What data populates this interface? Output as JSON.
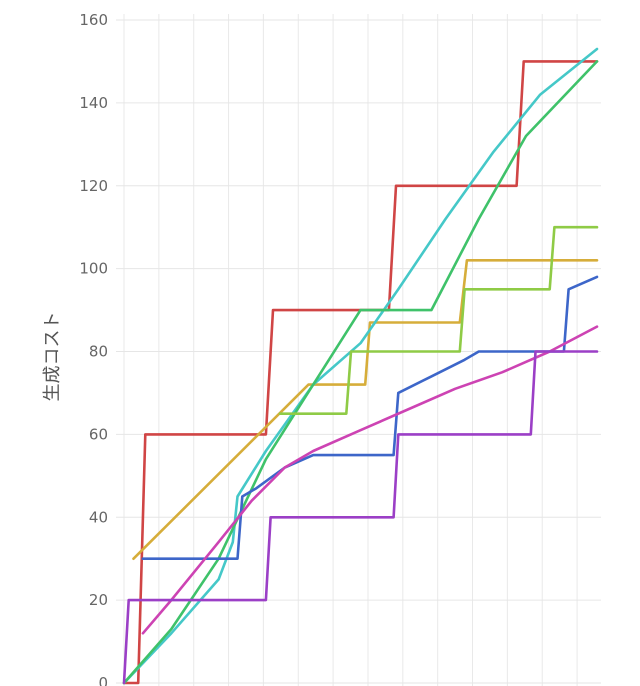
{
  "chart_data": {
    "type": "line",
    "ylabel": "生成コスト",
    "xlabel": "",
    "ylim": [
      0,
      160
    ],
    "y_ticks": [
      0,
      20,
      40,
      60,
      80,
      100,
      120,
      140,
      160
    ],
    "x_range": [
      0,
      100
    ],
    "x_grid": [
      0,
      7.37,
      14.74,
      22.11,
      29.47,
      36.84,
      44.21,
      51.58,
      58.95,
      66.32,
      73.68,
      81.05,
      88.42,
      95.79
    ],
    "grid": true,
    "series": [
      {
        "color": "#d04545",
        "points": [
          [
            0,
            0
          ],
          [
            3,
            0
          ],
          [
            4.5,
            60
          ],
          [
            30,
            60
          ],
          [
            31.5,
            90
          ],
          [
            56,
            90
          ],
          [
            57.5,
            120
          ],
          [
            83,
            120
          ],
          [
            84.5,
            150
          ],
          [
            100,
            150
          ]
        ]
      },
      {
        "color": "#d6ad3a",
        "points": [
          [
            2,
            30
          ],
          [
            39,
            72
          ],
          [
            51,
            72
          ],
          [
            52,
            87
          ],
          [
            71,
            87
          ],
          [
            72.5,
            102
          ],
          [
            100,
            102
          ]
        ]
      },
      {
        "color": "#45c8c8",
        "points": [
          [
            0,
            0
          ],
          [
            10,
            12
          ],
          [
            20,
            25
          ],
          [
            23,
            34
          ],
          [
            24,
            45
          ],
          [
            30,
            56
          ],
          [
            40,
            72
          ],
          [
            50,
            82
          ],
          [
            58,
            95
          ],
          [
            68,
            112
          ],
          [
            78,
            128
          ],
          [
            88,
            142
          ],
          [
            100,
            153
          ]
        ]
      },
      {
        "color": "#3fc26a",
        "points": [
          [
            0,
            0
          ],
          [
            10,
            13
          ],
          [
            20,
            30
          ],
          [
            30,
            54
          ],
          [
            40,
            72
          ],
          [
            50,
            90
          ],
          [
            65,
            90
          ],
          [
            75,
            112
          ],
          [
            85,
            132
          ],
          [
            100,
            150
          ]
        ]
      },
      {
        "color": "#8fcb46",
        "points": [
          [
            33,
            65
          ],
          [
            47,
            65
          ],
          [
            48,
            80
          ],
          [
            71,
            80
          ],
          [
            72,
            95
          ],
          [
            90,
            95
          ],
          [
            91,
            110
          ],
          [
            100,
            110
          ]
        ]
      },
      {
        "color": "#3d66c9",
        "points": [
          [
            4,
            30
          ],
          [
            24,
            30
          ],
          [
            25,
            45
          ],
          [
            28,
            47
          ],
          [
            34,
            52
          ],
          [
            40,
            55
          ],
          [
            57,
            55
          ],
          [
            58,
            70
          ],
          [
            65,
            74
          ],
          [
            72,
            78
          ],
          [
            75,
            80
          ],
          [
            93,
            80
          ],
          [
            94,
            95
          ],
          [
            100,
            98
          ]
        ]
      },
      {
        "color": "#cd43b3",
        "points": [
          [
            4,
            12
          ],
          [
            10,
            20
          ],
          [
            20,
            34
          ],
          [
            27,
            44
          ],
          [
            34,
            52
          ],
          [
            40,
            56
          ],
          [
            50,
            61
          ],
          [
            60,
            66
          ],
          [
            70,
            71
          ],
          [
            80,
            75
          ],
          [
            90,
            80
          ],
          [
            100,
            86
          ]
        ]
      },
      {
        "color": "#9b3fc6",
        "points": [
          [
            0,
            0
          ],
          [
            1,
            20
          ],
          [
            30,
            20
          ],
          [
            31,
            40
          ],
          [
            57,
            40
          ],
          [
            58,
            60
          ],
          [
            86,
            60
          ],
          [
            87,
            80
          ],
          [
            100,
            80
          ]
        ]
      }
    ]
  }
}
